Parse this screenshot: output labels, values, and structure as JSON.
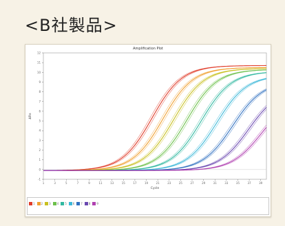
{
  "heading": "<B社製品>",
  "chart_data": {
    "type": "line",
    "title": "Amplification Plot",
    "xlabel": "Cycle",
    "ylabel": "ΔRn",
    "x_ticks": [
      1,
      3,
      5,
      7,
      9,
      11,
      13,
      15,
      17,
      19,
      21,
      23,
      25,
      27,
      29,
      31,
      33,
      35,
      37,
      39
    ],
    "xlim": [
      1,
      40
    ],
    "ylim": [
      -1,
      12
    ],
    "y_ticks": [
      -1,
      0,
      1,
      2,
      3,
      4,
      5,
      6,
      7,
      8,
      9,
      10,
      11,
      12
    ],
    "grid": false,
    "legend_position": "bottom",
    "series": [
      {
        "name": "1",
        "color": "#e03c2a",
        "ct": 16.5,
        "max": 10.8
      },
      {
        "name": "2",
        "color": "#f0a030",
        "ct": 18.4,
        "max": 10.6
      },
      {
        "name": "3",
        "color": "#c8c020",
        "ct": 20.3,
        "max": 10.5
      },
      {
        "name": "4",
        "color": "#6cc04a",
        "ct": 22.6,
        "max": 10.4
      },
      {
        "name": "5",
        "color": "#30b8a0",
        "ct": 25.1,
        "max": 10.2
      },
      {
        "name": "6",
        "color": "#3cb8d8",
        "ct": 27.8,
        "max": 9.8
      },
      {
        "name": "7",
        "color": "#3070c0",
        "ct": 30.6,
        "max": 9.2
      },
      {
        "name": "8",
        "color": "#6a48b0",
        "ct": 33.4,
        "max": 8.5
      },
      {
        "name": "9",
        "color": "#b040b0",
        "ct": 35.6,
        "max": 7.6
      }
    ]
  }
}
